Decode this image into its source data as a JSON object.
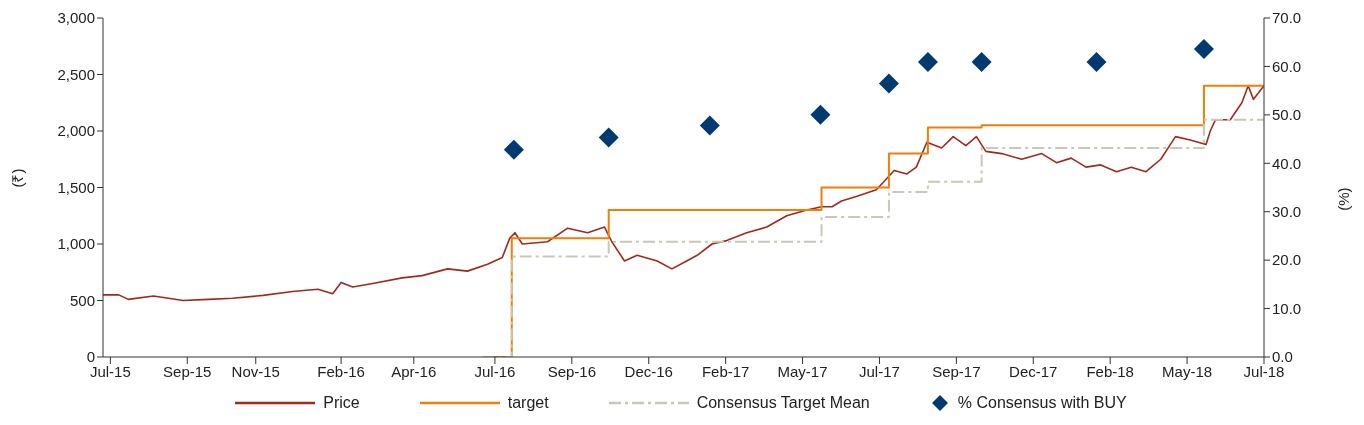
{
  "chart_data": {
    "type": "line",
    "ylabel": "(₹)",
    "y2label": "(%)",
    "xlim": [
      "2015-07-08",
      "2018-07-14"
    ],
    "xticks": [
      {
        "value": "2015-07-15",
        "label": "Jul-15"
      },
      {
        "value": "2015-09-26",
        "label": "Sep-15"
      },
      {
        "value": "2015-11-30",
        "label": "Nov-15"
      },
      {
        "value": "2016-02-19",
        "label": "Feb-16"
      },
      {
        "value": "2016-04-28",
        "label": "Apr-16"
      },
      {
        "value": "2016-07-14",
        "label": "Jul-16"
      },
      {
        "value": "2016-09-25",
        "label": "Sep-16"
      },
      {
        "value": "2016-12-07",
        "label": "Dec-16"
      },
      {
        "value": "2017-02-18",
        "label": "Feb-17"
      },
      {
        "value": "2017-05-02",
        "label": "May-17"
      },
      {
        "value": "2017-07-14",
        "label": "Jul-17"
      },
      {
        "value": "2017-09-25",
        "label": "Sep-17"
      },
      {
        "value": "2017-12-07",
        "label": "Dec-17"
      },
      {
        "value": "2018-02-18",
        "label": "Feb-18"
      },
      {
        "value": "2018-05-02",
        "label": "May-18"
      },
      {
        "value": "2018-07-14",
        "label": "Jul-18"
      }
    ],
    "ylim": [
      0,
      3000
    ],
    "yticks": [
      0,
      {
        "value": 500,
        "label": "500"
      },
      {
        "value": 1000,
        "label": "1,000"
      },
      {
        "value": 1500,
        "label": "1,500"
      },
      {
        "value": 2000,
        "label": "2,000"
      },
      {
        "value": 2500,
        "label": "2,500"
      },
      {
        "value": 3000,
        "label": "3,000"
      }
    ],
    "y2lim": [
      0,
      70
    ],
    "y2ticks": [
      {
        "value": 0,
        "label": "0.0"
      },
      {
        "value": 10,
        "label": "10.0"
      },
      {
        "value": 20,
        "label": "20.0"
      },
      {
        "value": 30,
        "label": "30.0"
      },
      {
        "value": 40,
        "label": "40.0"
      },
      {
        "value": 50,
        "label": "50.0"
      },
      {
        "value": 60,
        "label": "60.0"
      },
      {
        "value": 70,
        "label": "70.0"
      }
    ],
    "legend": "bottom",
    "series": [
      {
        "name": "Price",
        "color": "#9e2a1e",
        "x": [
          "2015-07-08",
          "2015-07-23",
          "2015-08-01",
          "2015-08-25",
          "2015-09-22",
          "2015-10-16",
          "2015-11-08",
          "2015-12-07",
          "2016-01-04",
          "2016-01-28",
          "2016-02-11",
          "2016-02-19",
          "2016-03-01",
          "2016-03-20",
          "2016-04-17",
          "2016-05-06",
          "2016-05-30",
          "2016-06-18",
          "2016-07-07",
          "2016-07-21",
          "2016-07-28",
          "2016-08-02",
          "2016-08-09",
          "2016-09-02",
          "2016-09-21",
          "2016-10-10",
          "2016-10-26",
          "2016-11-02",
          "2016-11-14",
          "2016-11-26",
          "2016-12-15",
          "2016-12-29",
          "2017-01-12",
          "2017-01-22",
          "2017-02-05",
          "2017-02-19",
          "2017-03-10",
          "2017-03-29",
          "2017-04-17",
          "2017-05-06",
          "2017-05-20",
          "2017-05-30",
          "2017-06-08",
          "2017-06-22",
          "2017-07-11",
          "2017-07-19",
          "2017-07-28",
          "2017-08-09",
          "2017-08-18",
          "2017-08-28",
          "2017-09-11",
          "2017-09-22",
          "2017-10-04",
          "2017-10-14",
          "2017-10-23",
          "2017-11-07",
          "2017-11-26",
          "2017-12-15",
          "2017-12-29",
          "2018-01-12",
          "2018-01-26",
          "2018-02-09",
          "2018-02-24",
          "2018-03-10",
          "2018-03-24",
          "2018-04-07",
          "2018-04-21",
          "2018-05-05",
          "2018-05-20",
          "2018-05-24",
          "2018-05-29",
          "2018-06-12",
          "2018-06-23",
          "2018-06-29",
          "2018-07-04",
          "2018-07-14"
        ],
        "values": [
          550,
          550,
          510,
          540,
          500,
          510,
          520,
          545,
          580,
          600,
          560,
          660,
          620,
          650,
          700,
          720,
          780,
          760,
          820,
          880,
          1050,
          1100,
          1000,
          1020,
          1140,
          1100,
          1150,
          1020,
          850,
          900,
          850,
          780,
          850,
          900,
          1000,
          1030,
          1100,
          1150,
          1250,
          1300,
          1330,
          1330,
          1380,
          1420,
          1480,
          1560,
          1650,
          1620,
          1680,
          1900,
          1850,
          1950,
          1870,
          1950,
          1820,
          1800,
          1750,
          1800,
          1720,
          1760,
          1680,
          1700,
          1640,
          1680,
          1640,
          1750,
          1950,
          1920,
          1880,
          2000,
          2100,
          2100,
          2250,
          2400,
          2280,
          2400
        ]
      },
      {
        "name": "target",
        "type": "step",
        "color": "#f07f09",
        "x": [
          "2016-07-10",
          "2016-07-30",
          "2016-10-30",
          "2017-05-20",
          "2017-07-23",
          "2017-08-29",
          "2017-10-19",
          "2018-05-18",
          "2018-07-14"
        ],
        "values": [
          0,
          1050,
          1300,
          1500,
          1800,
          2030,
          2050,
          2400,
          2400
        ]
      },
      {
        "name": "Consensus Target Mean",
        "type": "step",
        "color": "#c8c8b4",
        "line_style": "dashed",
        "x": [
          "2016-07-02",
          "2016-07-30",
          "2016-10-30",
          "2017-05-20",
          "2017-07-23",
          "2017-08-29",
          "2017-10-19",
          "2018-05-18",
          "2018-07-14"
        ],
        "values": [
          0,
          890,
          1020,
          1240,
          1460,
          1550,
          1850,
          2100,
          2100
        ]
      },
      {
        "name": "% Consensus with BUY",
        "type": "scatter",
        "axis": "y2",
        "marker": "diamond",
        "color": "#003a70",
        "x": [
          "2016-08-01",
          "2016-10-30",
          "2017-02-03",
          "2017-05-19",
          "2017-07-23",
          "2017-08-29",
          "2017-10-19",
          "2018-02-05",
          "2018-05-18"
        ],
        "values": [
          42.8,
          45.3,
          47.8,
          50.0,
          56.5,
          60.9,
          60.9,
          60.9,
          63.6
        ]
      }
    ]
  }
}
